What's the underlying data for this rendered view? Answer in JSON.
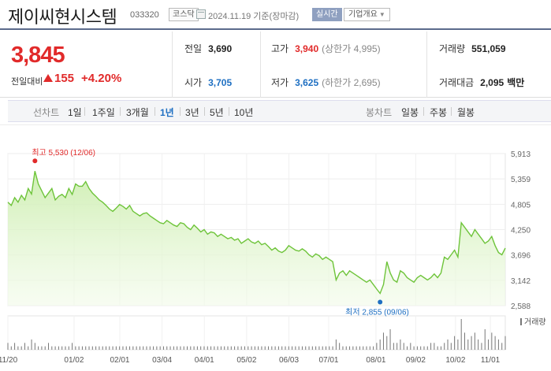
{
  "header": {
    "stock_name": "제이씨현시스템",
    "stock_code": "033320",
    "market": "코스닥",
    "date": "2024.11.19 기준(장마감)",
    "realtime_label": "실시간",
    "overview_label": "기업개요"
  },
  "price": {
    "current": "3,845",
    "diff_label": "전일대비",
    "diff_value": "155",
    "diff_pct": "+4.20%"
  },
  "stats": {
    "prev_label": "전일",
    "prev_value": "3,690",
    "high_label": "고가",
    "high_value": "3,940",
    "upper_limit": "(상한가 4,995)",
    "volume_label": "거래량",
    "volume_value": "551,059",
    "open_label": "시가",
    "open_value": "3,705",
    "low_label": "저가",
    "low_value": "3,625",
    "lower_limit": "(하한가 2,695)",
    "amount_label": "거래대금",
    "amount_value": "2,095",
    "amount_unit": "백만"
  },
  "period_bar": {
    "chart_label": "선차트",
    "periods": [
      "1일",
      "1주일",
      "3개월",
      "1년",
      "3년",
      "5년",
      "10년"
    ],
    "active_period": "1년",
    "candle_label": "봉차트",
    "candles": [
      "일봉",
      "주봉",
      "월봉"
    ]
  },
  "colors": {
    "up": "#e12a2a",
    "down": "#1e6fc2",
    "line": "#6ec43a"
  },
  "chart_data": {
    "type": "area",
    "y_ticks": [
      "5,913",
      "5,359",
      "4,805",
      "4,250",
      "3,696",
      "3,142",
      "2,588"
    ],
    "ylim": [
      2588,
      5913
    ],
    "x_labels": [
      "11/20",
      "01/02",
      "02/01",
      "03/04",
      "04/01",
      "05/02",
      "06/03",
      "07/01",
      "08/01",
      "09/02",
      "10/02",
      "11/01"
    ],
    "max_label": "최고 5,530 (12/06)",
    "min_label": "최저 2,855 (09/06)",
    "volume_label": "거래량",
    "values": [
      4850,
      4780,
      4950,
      4850,
      5000,
      4900,
      5150,
      5030,
      5530,
      5250,
      5100,
      4950,
      5050,
      5150,
      4900,
      4980,
      5020,
      4950,
      5150,
      5020,
      5250,
      5200,
      5200,
      5300,
      5150,
      5050,
      4980,
      4900,
      4850,
      4780,
      4700,
      4650,
      4720,
      4800,
      4760,
      4700,
      4780,
      4650,
      4600,
      4550,
      4600,
      4620,
      4550,
      4500,
      4450,
      4400,
      4380,
      4450,
      4400,
      4350,
      4320,
      4400,
      4380,
      4300,
      4250,
      4350,
      4280,
      4200,
      4250,
      4150,
      4200,
      4180,
      4100,
      4150,
      4100,
      4050,
      4080,
      4020,
      4050,
      3950,
      4000,
      4050,
      3980,
      3950,
      4000,
      3920,
      3950,
      3880,
      3800,
      3850,
      3780,
      3750,
      3800,
      3900,
      3850,
      3800,
      3780,
      3830,
      3780,
      3700,
      3650,
      3720,
      3680,
      3600,
      3650,
      3600,
      3550,
      3150,
      3300,
      3350,
      3250,
      3350,
      3300,
      3250,
      3200,
      3150,
      3100,
      3150,
      3050,
      2950,
      2855,
      3050,
      3550,
      3300,
      3150,
      3100,
      3350,
      3300,
      3200,
      3150,
      3100,
      3200,
      3250,
      3200,
      3150,
      3200,
      3280,
      3200,
      3300,
      3650,
      3600,
      3700,
      3800,
      3650,
      4400,
      4300,
      4200,
      4100,
      4250,
      4150,
      4050,
      3950,
      4000,
      4100,
      3900,
      3750,
      3700,
      3845
    ],
    "volumes": [
      2,
      1,
      2,
      1,
      1,
      2,
      1,
      3,
      2,
      1,
      1,
      1,
      2,
      1,
      1,
      1,
      1,
      1,
      1,
      2,
      1,
      1,
      1,
      1,
      1,
      1,
      1,
      1,
      1,
      1,
      1,
      1,
      1,
      1,
      1,
      1,
      1,
      1,
      1,
      1,
      1,
      1,
      1,
      1,
      1,
      1,
      1,
      1,
      1,
      1,
      1,
      1,
      1,
      1,
      1,
      1,
      1,
      1,
      1,
      1,
      1,
      1,
      1,
      1,
      1,
      1,
      1,
      1,
      1,
      1,
      1,
      1,
      1,
      1,
      1,
      1,
      1,
      1,
      1,
      1,
      1,
      1,
      1,
      1,
      1,
      1,
      1,
      1,
      1,
      1,
      1,
      1,
      1,
      1,
      1,
      1,
      1,
      3,
      2,
      1,
      1,
      1,
      1,
      1,
      1,
      1,
      1,
      1,
      1,
      2,
      3,
      5,
      4,
      6,
      2,
      2,
      3,
      2,
      1,
      2,
      1,
      1,
      1,
      1,
      1,
      2,
      2,
      1,
      1,
      2,
      3,
      2,
      4,
      3,
      9,
      5,
      3,
      4,
      5,
      3,
      2,
      6,
      3,
      5,
      4,
      3,
      2,
      4
    ]
  }
}
